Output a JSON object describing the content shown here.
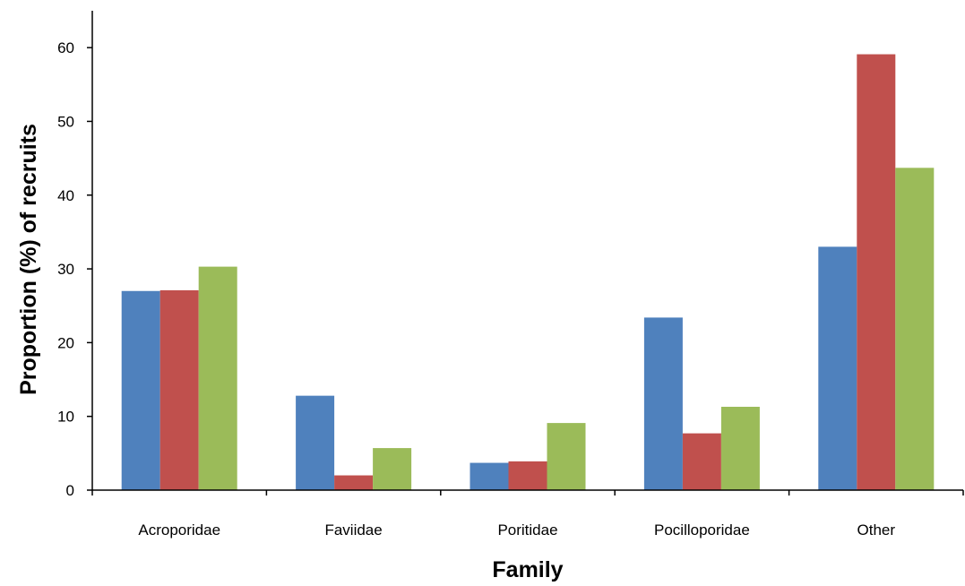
{
  "chart_data": {
    "type": "bar",
    "title": "",
    "xlabel": "Family",
    "ylabel": "Proportion (%) of recruits",
    "categories": [
      "Acroporidae",
      "Faviidae",
      "Poritidae",
      "Pocilloporidae",
      "Other"
    ],
    "series": [
      {
        "values": [
          27.0,
          12.8,
          3.7,
          23.4,
          33.0
        ],
        "color": "#4F81BD"
      },
      {
        "values": [
          27.1,
          2.0,
          3.9,
          7.7,
          59.1
        ],
        "color": "#C0504D"
      },
      {
        "values": [
          30.3,
          5.7,
          9.1,
          11.3,
          43.7
        ],
        "color": "#9BBB59"
      }
    ],
    "ylim": [
      0,
      65
    ],
    "yticks": [
      0,
      10,
      20,
      30,
      40,
      50,
      60
    ],
    "grid": false,
    "legend": "none"
  }
}
